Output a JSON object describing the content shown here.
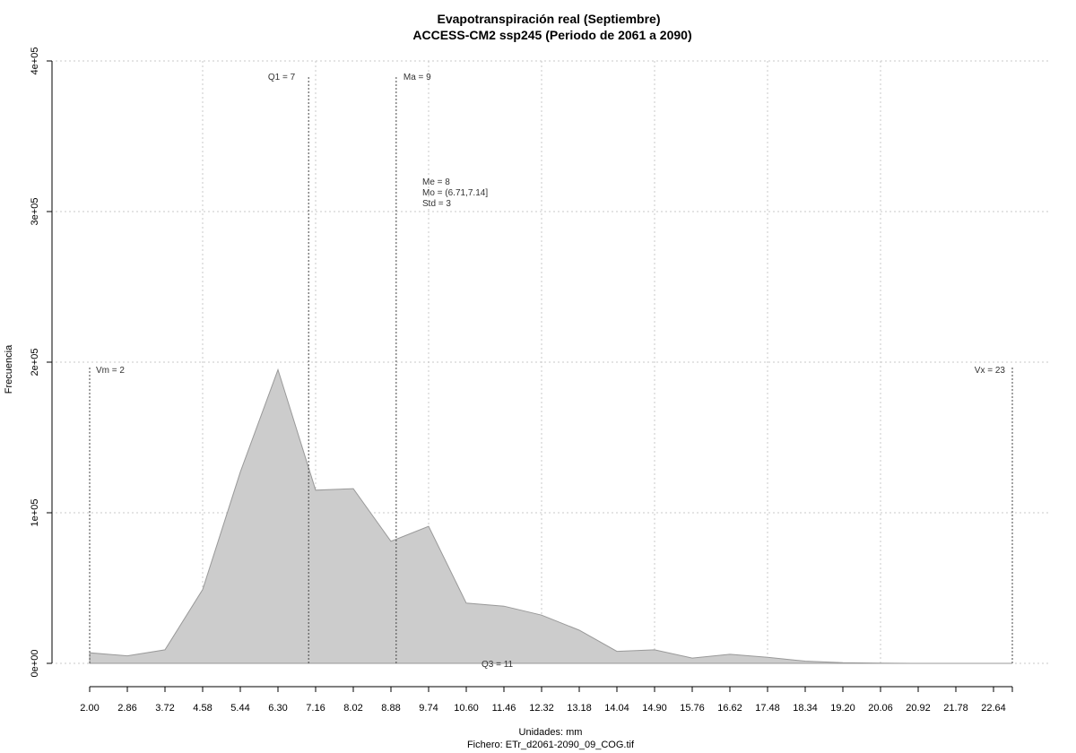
{
  "chart_data": {
    "type": "area",
    "title": "Evapotranspiración real (Septiembre)",
    "subtitle": "ACCESS-CM2 ssp245 (Periodo de 2061 a 2090)",
    "xlabel": "Unidades: mm",
    "ylabel": "Frecuencia",
    "footer": "Fichero: ETr_d2061-2090_09_COG.tif",
    "xlim": [
      2.0,
      23.07
    ],
    "ylim": [
      0,
      400000
    ],
    "grid": true,
    "x_ticks": [
      "2.00",
      "2.86",
      "3.72",
      "4.58",
      "5.44",
      "6.30",
      "7.16",
      "8.02",
      "8.88",
      "9.74",
      "10.60",
      "11.46",
      "12.32",
      "13.18",
      "14.04",
      "14.90",
      "15.76",
      "16.62",
      "17.48",
      "18.34",
      "19.20",
      "20.06",
      "20.92",
      "21.78",
      "22.64"
    ],
    "y_ticks": [
      {
        "value": 0,
        "label": "0e+00"
      },
      {
        "value": 100000,
        "label": "1e+05"
      },
      {
        "value": 200000,
        "label": "2e+05"
      },
      {
        "value": 300000,
        "label": "3e+05"
      },
      {
        "value": 400000,
        "label": "4e+05"
      }
    ],
    "fill_color": "#cccccc",
    "line_color": "#999999",
    "x": [
      2.0,
      2.86,
      3.72,
      4.58,
      5.44,
      6.3,
      7.16,
      8.02,
      8.88,
      9.74,
      10.6,
      11.46,
      12.32,
      13.18,
      14.04,
      14.9,
      15.76,
      16.62,
      17.48,
      18.34,
      19.2,
      20.06,
      20.92,
      21.78,
      22.64,
      23.07
    ],
    "y": [
      7000,
      5000,
      9000,
      49000,
      127000,
      195000,
      115000,
      116000,
      81000,
      91000,
      40000,
      38000,
      32000,
      22000,
      8000,
      9000,
      3500,
      6000,
      4000,
      1500,
      500,
      200,
      0,
      0,
      0,
      0
    ],
    "markers": [
      {
        "label": "Vm = 2",
        "x": 2.0
      },
      {
        "label": "Q1 = 7",
        "x": 7.0
      },
      {
        "label": "Ma = 9",
        "x": 9.0
      },
      {
        "label": "Q3 = 11",
        "x": 11.0
      },
      {
        "label": "Vx = 23",
        "x": 23.07
      }
    ],
    "stats": [
      "Me = 8",
      "Mo = (6.71,7.14]",
      "Std = 3"
    ]
  }
}
